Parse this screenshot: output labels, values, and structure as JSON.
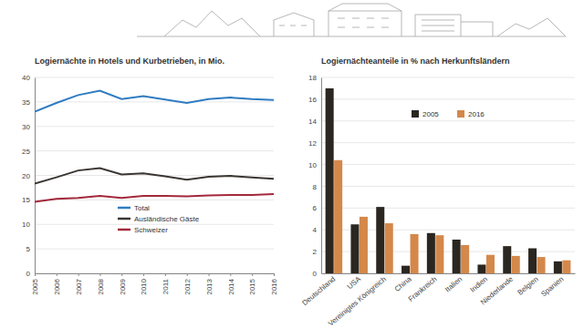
{
  "chart_data": [
    {
      "type": "line",
      "title": "Logiernächte in Hotels und Kurbetrieben, in Mio.",
      "x": [
        2005,
        2006,
        2007,
        2008,
        2009,
        2010,
        2011,
        2012,
        2013,
        2014,
        2015,
        2016
      ],
      "xlim": [
        2005,
        2016
      ],
      "xticks": [
        2005,
        2006,
        2007,
        2008,
        2009,
        2010,
        2011,
        2012,
        2013,
        2014,
        2015,
        2016
      ],
      "ylim": [
        0,
        40
      ],
      "yticks": [
        0,
        5,
        10,
        15,
        20,
        25,
        30,
        35,
        40
      ],
      "grid": true,
      "legend": "lower center",
      "series": [
        {
          "name": "Total",
          "color": "#2f7cc0",
          "values": [
            33.0,
            34.8,
            36.4,
            37.3,
            35.6,
            36.2,
            35.5,
            34.8,
            35.6,
            35.9,
            35.6,
            35.4
          ]
        },
        {
          "name": "Ausländische Gäste",
          "color": "#3a3632",
          "values": [
            18.3,
            19.6,
            21.0,
            21.5,
            20.2,
            20.4,
            19.8,
            19.1,
            19.7,
            19.9,
            19.6,
            19.3
          ]
        },
        {
          "name": "Schweizer",
          "color": "#a3283a",
          "values": [
            14.6,
            15.2,
            15.4,
            15.8,
            15.4,
            15.8,
            15.8,
            15.7,
            15.9,
            16.0,
            16.0,
            16.2
          ]
        }
      ]
    },
    {
      "type": "bar",
      "title": "Logiernächteanteile in % nach Herkunftsländern",
      "categories": [
        "Deutschland",
        "USA",
        "Vereinigtes Königreich",
        "China",
        "Frankreich",
        "Italien",
        "Indien",
        "Niederlande",
        "Belgien",
        "Spanien"
      ],
      "ylim": [
        0,
        18
      ],
      "yticks": [
        0,
        2,
        4,
        6,
        8,
        10,
        12,
        14,
        16,
        18
      ],
      "grid": true,
      "legend": "upper center",
      "series": [
        {
          "name": "2005",
          "color": "#2b2620",
          "values": [
            17.0,
            4.5,
            6.1,
            0.7,
            3.7,
            3.1,
            0.8,
            2.5,
            2.3,
            1.1
          ]
        },
        {
          "name": "2016",
          "color": "#d4884a",
          "values": [
            10.4,
            5.2,
            4.6,
            3.6,
            3.5,
            2.6,
            1.7,
            1.6,
            1.5,
            1.2
          ]
        }
      ]
    }
  ]
}
